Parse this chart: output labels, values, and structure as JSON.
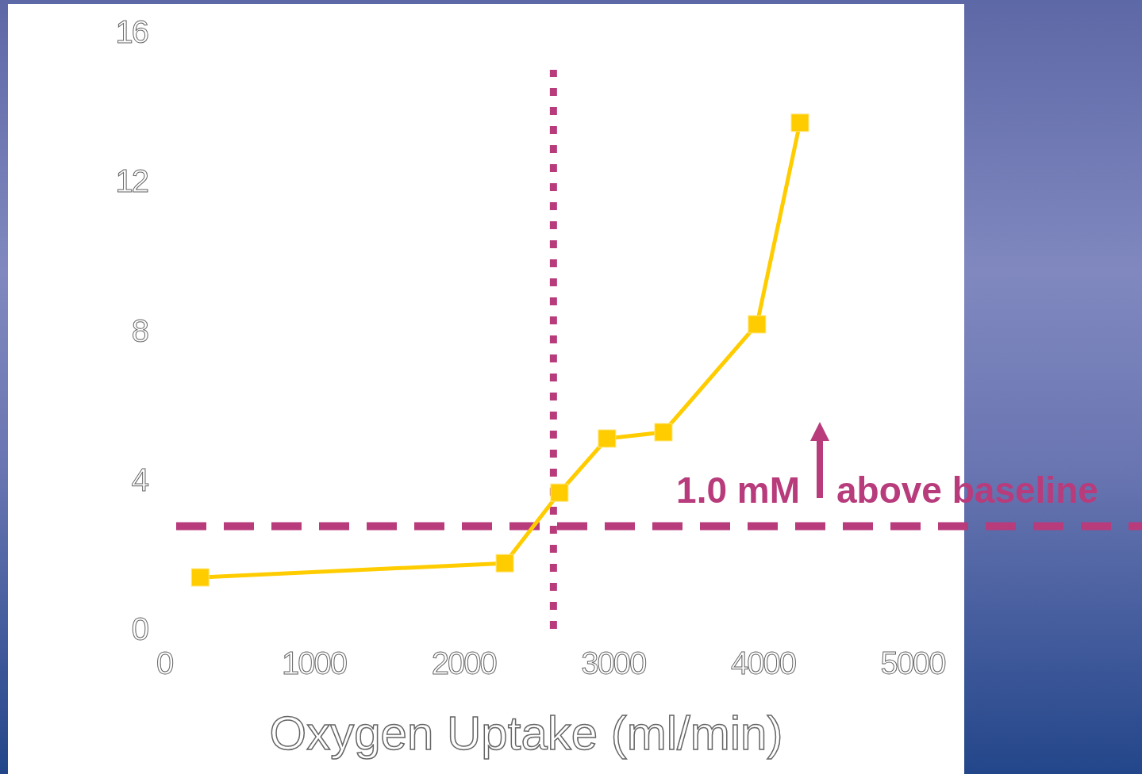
{
  "chart_data": {
    "type": "line",
    "xlabel": "Oxygen Uptake (ml/min)",
    "x": [
      240,
      2275,
      2640,
      2958,
      3335,
      3960,
      4247
    ],
    "series": [
      {
        "color": "#ffcc00",
        "values": [
          1.38,
          1.76,
          3.65,
          5.1,
          5.27,
          8.16,
          13.56
        ]
      }
    ],
    "xlim": [
      0,
      5000
    ],
    "ylim": [
      0,
      16
    ],
    "xticks": [
      0,
      1000,
      2000,
      3000,
      4000,
      5000
    ],
    "yticks": [
      0,
      4,
      8,
      12,
      16
    ],
    "grid": false,
    "marker": "square",
    "line_style": "solid",
    "ref_lines": [
      {
        "axis": "x",
        "value": 2600,
        "color": "#b83c7c",
        "line_style": "dotted"
      },
      {
        "axis": "y",
        "value": 2.75,
        "color": "#b83c7c",
        "line_style": "dashed"
      }
    ],
    "annotations": [
      "1.0 mM",
      "above baseline"
    ]
  }
}
